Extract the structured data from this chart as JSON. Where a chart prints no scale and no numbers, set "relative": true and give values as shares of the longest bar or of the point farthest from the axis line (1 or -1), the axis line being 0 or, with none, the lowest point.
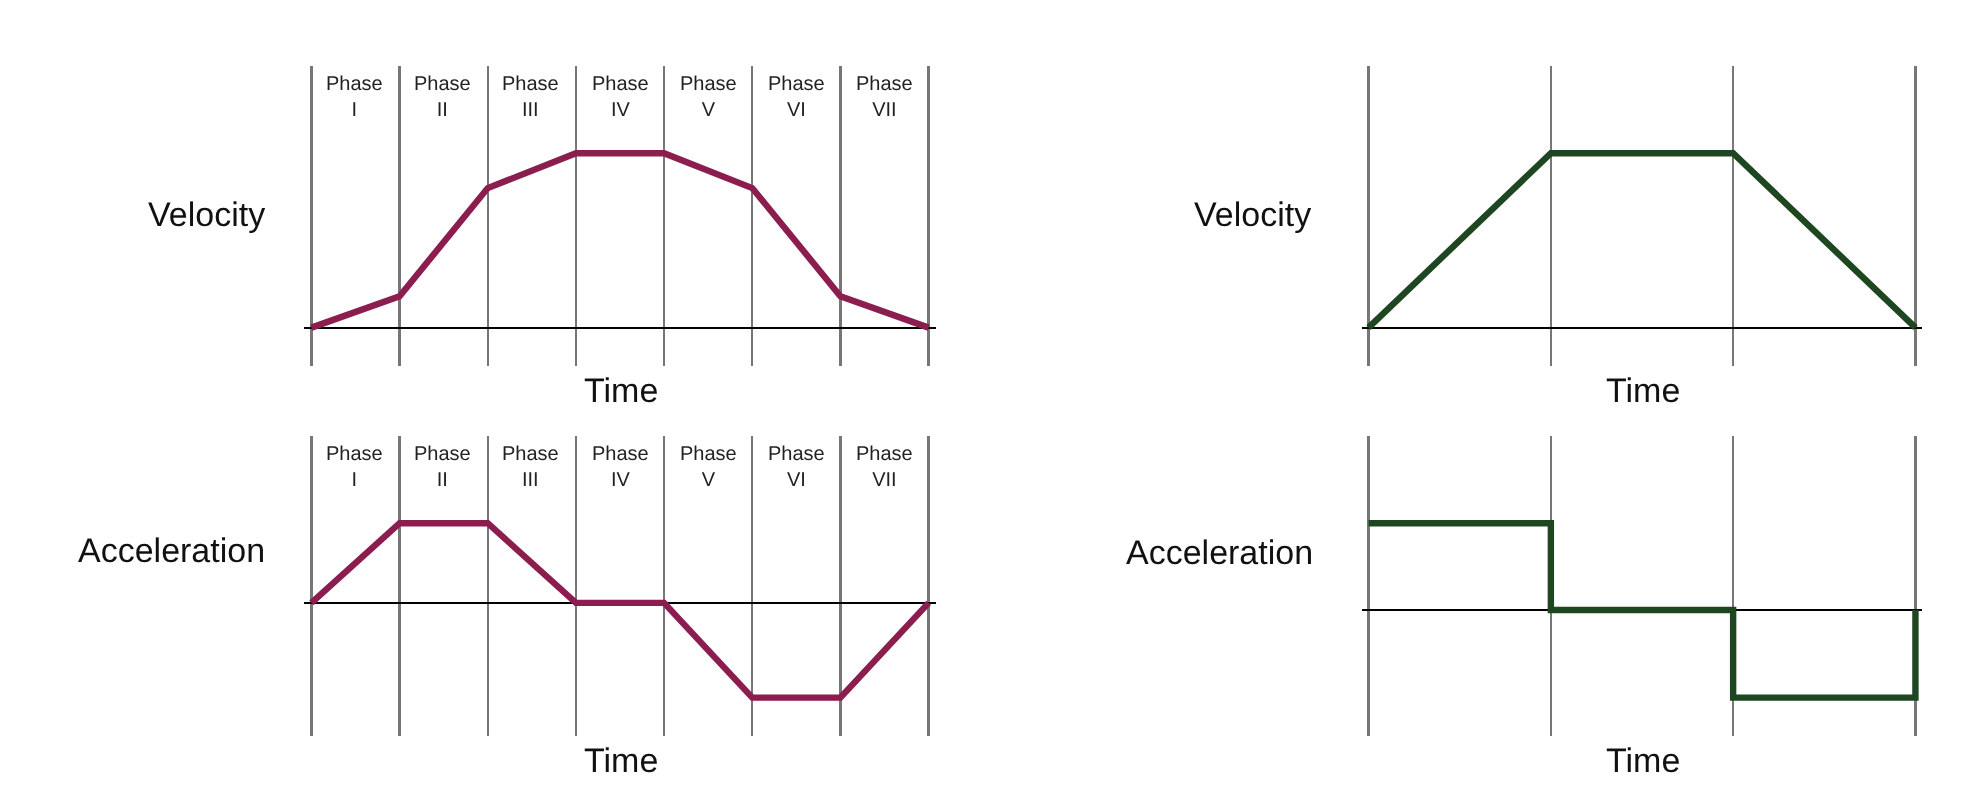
{
  "chart_data": [
    {
      "type": "line",
      "relative": true,
      "ylabel": "Velocity",
      "xlabel": "Time",
      "categories": [
        null,
        null,
        null,
        null,
        null,
        null,
        null,
        null
      ],
      "grid": "x",
      "line_style": "solid",
      "series": [
        {
          "color": "#8c1d4f",
          "values": [
            0,
            0.18,
            0.8,
            1,
            1,
            0.8,
            0.18,
            0
          ]
        }
      ],
      "annotations": [
        "Phase\nI",
        "Phase\nII",
        "Phase\nIII",
        "Phase\nIV",
        "Phase\nV",
        "Phase\nVI",
        "Phase\nVII"
      ]
    },
    {
      "type": "line",
      "relative": true,
      "ylabel": "Acceleration",
      "xlabel": "Time",
      "categories": [
        null,
        null,
        null,
        null,
        null,
        null,
        null,
        null
      ],
      "grid": "x",
      "line_style": "solid",
      "series": [
        {
          "color": "#8c1d4f",
          "values": [
            0,
            0.84,
            0.84,
            0,
            0,
            -1,
            -1,
            0
          ]
        }
      ],
      "annotations": [
        "Phase\nI",
        "Phase\nII",
        "Phase\nIII",
        "Phase\nIV",
        "Phase\nV",
        "Phase\nVI",
        "Phase\nVII"
      ]
    },
    {
      "type": "line",
      "relative": true,
      "ylabel": "Velocity",
      "xlabel": "Time",
      "categories": [
        null,
        null,
        null,
        null
      ],
      "grid": "x",
      "line_style": "solid",
      "series": [
        {
          "color": "#1e4620",
          "values": [
            0,
            1,
            1,
            0
          ]
        }
      ]
    },
    {
      "type": "step",
      "relative": true,
      "ylabel": "Acceleration",
      "xlabel": "Time",
      "categories": [
        null,
        null,
        null,
        null
      ],
      "grid": "x",
      "line_style": "solid",
      "series": [
        {
          "color": "#1e4620",
          "values": [
            0.99,
            0,
            -1,
            0
          ]
        }
      ]
    }
  ]
}
